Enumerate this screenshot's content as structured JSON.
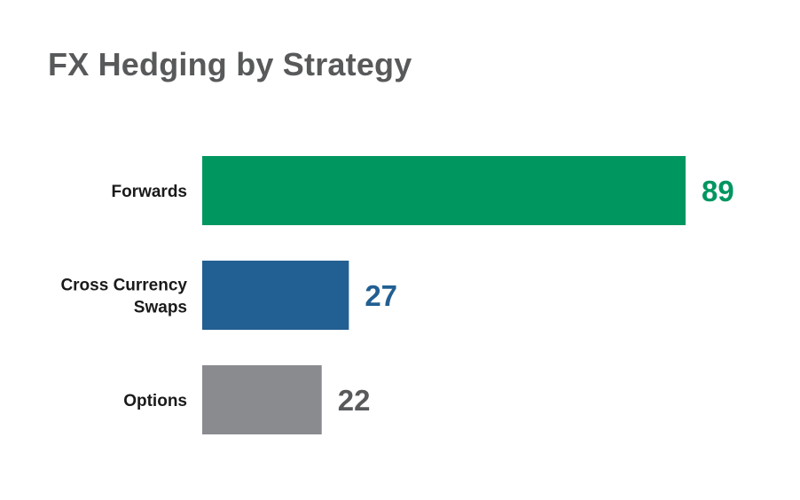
{
  "chart_data": {
    "type": "bar",
    "orientation": "horizontal",
    "title": "FX Hedging by Strategy",
    "xlabel": "",
    "ylabel": "",
    "xlim": [
      0,
      89
    ],
    "grid": false,
    "legend": "none",
    "categories": [
      {
        "lines": [
          "Forwards"
        ],
        "value": 89,
        "color": "#009660",
        "value_color": "#009660"
      },
      {
        "lines": [
          "Cross Currency",
          "Swaps"
        ],
        "value": 27,
        "color": "#225f92",
        "value_color": "#225f92"
      },
      {
        "lines": [
          "Options"
        ],
        "value": 22,
        "color": "#8a8b8f",
        "value_color": "#58595b"
      }
    ]
  }
}
